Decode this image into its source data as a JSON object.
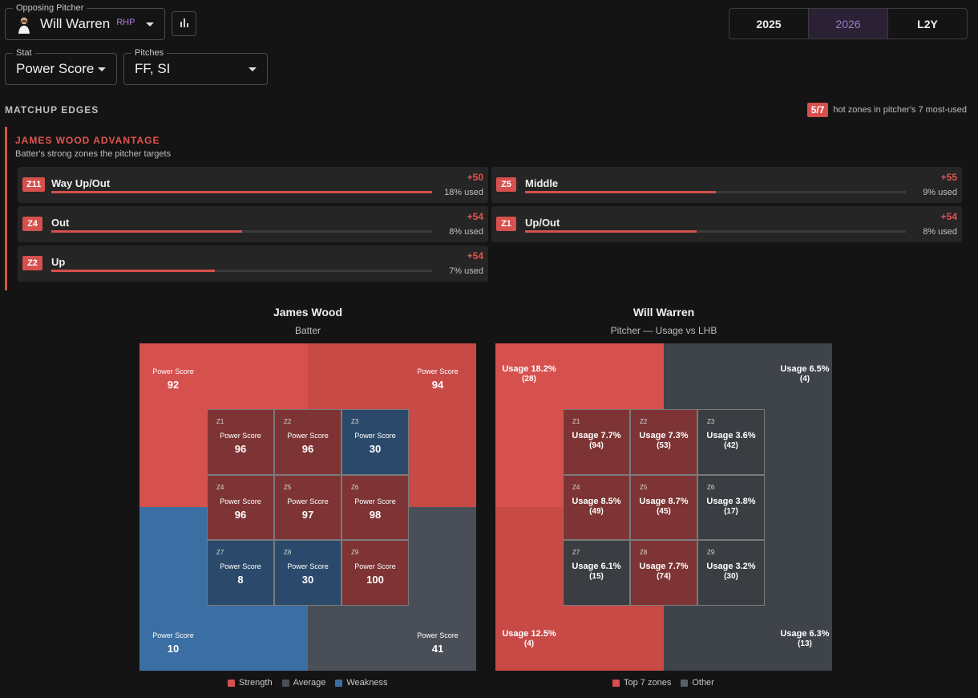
{
  "colors": {
    "strength": "#d6504d",
    "strength_mid": "#c84a47",
    "strength_dark": "#7e3434",
    "average": "#4a4f57",
    "weakness": "#3b6fa3",
    "weakness_dark": "#2b4a6b",
    "top_zone": "#d6504d",
    "other": "#3f434a",
    "accent_purple": "#9a7cc6"
  },
  "pitcher_select": {
    "legend": "Opposing Pitcher",
    "name": "Will Warren",
    "hand": "RHP",
    "avatar_icon": "pitcher-avatar-icon"
  },
  "chart_button": {
    "icon": "bar-chart-icon"
  },
  "seasons": [
    {
      "label": "2025",
      "active": false
    },
    {
      "label": "2026",
      "active": true
    },
    {
      "label": "L2Y",
      "active": false
    }
  ],
  "stat_select": {
    "legend": "Stat",
    "value": "Power Score"
  },
  "pitches_select": {
    "legend": "Pitches",
    "value": "FF, SI"
  },
  "matchup": {
    "title": "MATCHUP EDGES",
    "hot_badge": "5/7",
    "hot_text": "hot zones in pitcher's 7 most-used",
    "advantage_title": "JAMES WOOD ADVANTAGE",
    "advantage_subtitle": "Batter's strong zones the pitcher targets",
    "edges": [
      {
        "zone": "Z11",
        "name": "Way Up/Out",
        "delta": "+50",
        "used": "18% used",
        "fill": 1.0
      },
      {
        "zone": "Z5",
        "name": "Middle",
        "delta": "+55",
        "used": "9% used",
        "fill": 0.5
      },
      {
        "zone": "Z4",
        "name": "Out",
        "delta": "+54",
        "used": "8% used",
        "fill": 0.5
      },
      {
        "zone": "Z1",
        "name": "Up/Out",
        "delta": "+54",
        "used": "8% used",
        "fill": 0.45
      },
      {
        "zone": "Z2",
        "name": "Up",
        "delta": "+54",
        "used": "7% used",
        "fill": 0.43
      }
    ]
  },
  "batter_chart": {
    "title": "James Wood",
    "subtitle": "Batter",
    "metric_label": "Power Score",
    "outer": [
      {
        "pos": "top-left",
        "value": "92",
        "category": "strength"
      },
      {
        "pos": "top-right",
        "value": "94",
        "category": "strength"
      },
      {
        "pos": "bottom-left",
        "value": "10",
        "category": "weakness"
      },
      {
        "pos": "bottom-right",
        "value": "41",
        "category": "average"
      }
    ],
    "zones": [
      {
        "id": "Z1",
        "value": "96",
        "category": "strength"
      },
      {
        "id": "Z2",
        "value": "96",
        "category": "strength"
      },
      {
        "id": "Z3",
        "value": "30",
        "category": "weakness"
      },
      {
        "id": "Z4",
        "value": "96",
        "category": "strength"
      },
      {
        "id": "Z5",
        "value": "97",
        "category": "strength"
      },
      {
        "id": "Z6",
        "value": "98",
        "category": "strength"
      },
      {
        "id": "Z7",
        "value": "8",
        "category": "weakness"
      },
      {
        "id": "Z8",
        "value": "30",
        "category": "weakness"
      },
      {
        "id": "Z9",
        "value": "100",
        "category": "strength"
      }
    ],
    "legend": [
      "Strength",
      "Average",
      "Weakness"
    ]
  },
  "pitcher_chart": {
    "title": "Will Warren",
    "subtitle": "Pitcher — Usage vs LHB",
    "outer": [
      {
        "pos": "top-left",
        "usage": "Usage 18.2%",
        "count": "(28)",
        "top": true
      },
      {
        "pos": "top-right",
        "usage": "Usage 6.5%",
        "count": "(4)",
        "top": false
      },
      {
        "pos": "bottom-left",
        "usage": "Usage 12.5%",
        "count": "(4)",
        "top": true
      },
      {
        "pos": "bottom-right",
        "usage": "Usage 6.3%",
        "count": "(13)",
        "top": false
      }
    ],
    "zones": [
      {
        "id": "Z1",
        "usage": "Usage 7.7%",
        "count": "(94)",
        "top": true
      },
      {
        "id": "Z2",
        "usage": "Usage 7.3%",
        "count": "(53)",
        "top": true
      },
      {
        "id": "Z3",
        "usage": "Usage 3.6%",
        "count": "(42)",
        "top": false
      },
      {
        "id": "Z4",
        "usage": "Usage 8.5%",
        "count": "(49)",
        "top": true
      },
      {
        "id": "Z5",
        "usage": "Usage 8.7%",
        "count": "(45)",
        "top": true
      },
      {
        "id": "Z6",
        "usage": "Usage 3.8%",
        "count": "(17)",
        "top": false
      },
      {
        "id": "Z7",
        "usage": "Usage 6.1%",
        "count": "(15)",
        "top": false
      },
      {
        "id": "Z8",
        "usage": "Usage 7.7%",
        "count": "(74)",
        "top": true
      },
      {
        "id": "Z9",
        "usage": "Usage 3.2%",
        "count": "(30)",
        "top": false
      }
    ],
    "legend": [
      "Top 7 zones",
      "Other"
    ]
  }
}
